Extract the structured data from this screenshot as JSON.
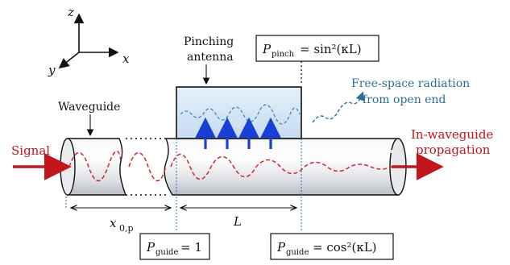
{
  "axes": {
    "z": "z",
    "y": "y",
    "x": "x"
  },
  "labels": {
    "waveguide": "Waveguide",
    "pinching_antenna_line1": "Pinching",
    "pinching_antenna_line2": "antenna",
    "signal": "Signal",
    "free_space_line1": "Free-space radiation",
    "free_space_line2": "from open end",
    "in_waveguide_line1": "In-waveguide",
    "in_waveguide_line2": "propagation"
  },
  "formulas": {
    "p_pinch_symbol": "P",
    "p_pinch_sub": "pinch",
    "p_pinch_rhs": "= sin²(κL)",
    "p_guide1_symbol": "P",
    "p_guide1_sub": "guide",
    "p_guide1_rhs": "= 1",
    "p_guide2_symbol": "P",
    "p_guide2_sub": "guide",
    "p_guide2_rhs": "= cos²(κL)"
  },
  "dimensions": {
    "x0_symbol": "x",
    "x0_sub": "0,p",
    "L_symbol": "L"
  },
  "colors": {
    "signal_red": "#c0161c",
    "wave_red": "#d0262c",
    "wave_blue": "#4a90c8",
    "coupling_arrow": "#1a3fd6",
    "antenna_fill": "#d6e8f7",
    "teal_text": "#2e6f8f"
  }
}
